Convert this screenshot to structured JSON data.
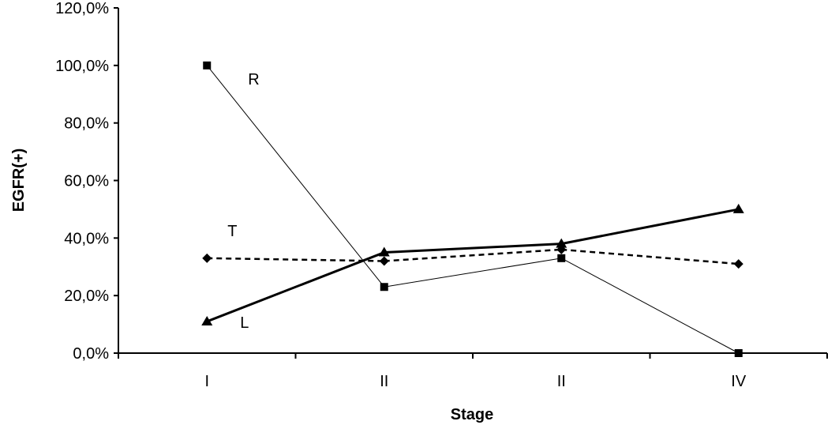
{
  "chart_data": {
    "type": "line",
    "categories": [
      "I",
      "II",
      "II",
      "IV"
    ],
    "xlabel": "Stage",
    "ylabel": "EGFR(+)",
    "ylim": [
      0,
      120
    ],
    "yticks": [
      "0,0%",
      "20,0%",
      "40,0%",
      "60,0%",
      "80,0%",
      "100,0%",
      "120,0%"
    ],
    "grid": false,
    "legend": "none (series labelled inline)",
    "series": [
      {
        "name": "R",
        "values": [
          100,
          23,
          33,
          0
        ],
        "marker": "square",
        "style": "solid-thin",
        "color": "#000000"
      },
      {
        "name": "T",
        "values": [
          33,
          32,
          36,
          31
        ],
        "marker": "diamond",
        "style": "dashed",
        "color": "#000000"
      },
      {
        "name": "L",
        "values": [
          11,
          35,
          38,
          50
        ],
        "marker": "triangle",
        "style": "solid-thick",
        "color": "#000000"
      }
    ]
  }
}
